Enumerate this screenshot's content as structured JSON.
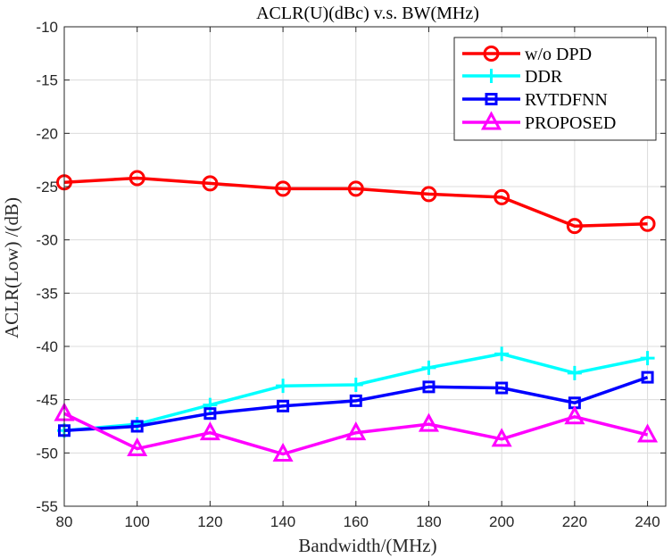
{
  "chart_data": {
    "type": "line",
    "title": "ACLR(U)(dBc) v.s. BW(MHz)",
    "xlabel": "Bandwidth/(MHz)",
    "ylabel": "ACLR(Low) /(dB)",
    "x": [
      80,
      100,
      120,
      140,
      160,
      180,
      200,
      220,
      240
    ],
    "xlim": [
      80,
      245
    ],
    "ylim": [
      -55,
      -10
    ],
    "xticks": [
      "80",
      "100",
      "120",
      "140",
      "160",
      "180",
      "200",
      "220",
      "240"
    ],
    "yticks": [
      "-10",
      "-15",
      "-20",
      "-25",
      "-30",
      "-35",
      "-40",
      "-45",
      "-50",
      "-55"
    ],
    "grid": true,
    "legend_position": "top-right",
    "series": [
      {
        "name": "w/o DPD",
        "color": "#ff0000",
        "marker": "circle",
        "values": [
          -24.6,
          -24.2,
          -24.7,
          -25.2,
          -25.2,
          -25.7,
          -26.0,
          -28.7,
          -28.5
        ]
      },
      {
        "name": "DDR",
        "color": "#00ffff",
        "marker": "plus",
        "values": [
          -47.9,
          -47.3,
          -45.5,
          -43.7,
          -43.6,
          -42.0,
          -40.7,
          -42.5,
          -41.1
        ]
      },
      {
        "name": "RVTDFNN",
        "color": "#0000ff",
        "marker": "square",
        "values": [
          -47.9,
          -47.5,
          -46.3,
          -45.6,
          -45.1,
          -43.8,
          -43.9,
          -45.3,
          -42.9
        ]
      },
      {
        "name": "PROPOSED",
        "color": "#ff00ff",
        "marker": "triangle",
        "values": [
          -46.3,
          -49.6,
          -48.1,
          -50.1,
          -48.1,
          -47.3,
          -48.7,
          -46.6,
          -48.3
        ]
      }
    ]
  }
}
